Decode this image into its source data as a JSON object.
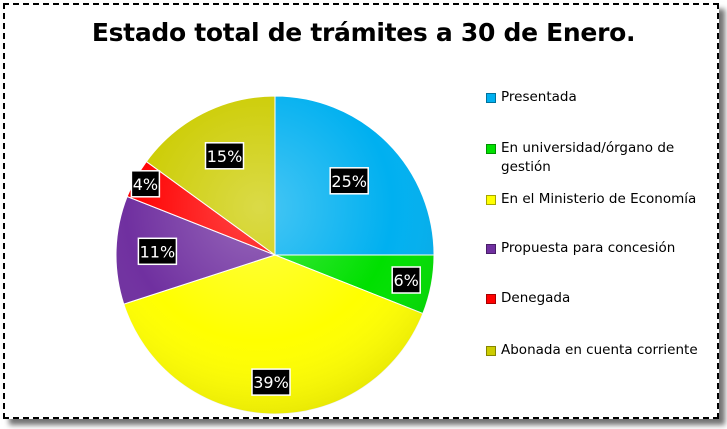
{
  "chart_data": {
    "type": "pie",
    "title": "Estado total de trámites a 30 de Enero.",
    "legend_position": "right",
    "slices": [
      {
        "label": "Presentada",
        "value": 25,
        "display": "25%",
        "color": "#00B0F0"
      },
      {
        "label": "En universidad/órgano de gestión",
        "value": 6,
        "display": "6%",
        "color": "#00E000"
      },
      {
        "label": "En el Ministerio de Economía",
        "value": 39,
        "display": "39%",
        "color": "#FFFF00"
      },
      {
        "label": "Propuesta para concesión",
        "value": 11,
        "display": "11%",
        "color": "#7030A0"
      },
      {
        "label": "Denegada",
        "value": 4,
        "display": "4%",
        "color": "#FF0000"
      },
      {
        "label": "Abonada en cuenta corriente",
        "value": 15,
        "display": "15%",
        "color": "#CCCC00"
      }
    ]
  }
}
